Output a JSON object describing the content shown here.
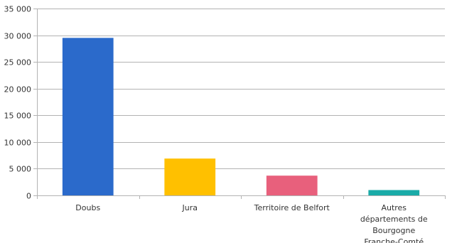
{
  "chart_data": {
    "type": "bar",
    "title": "",
    "xlabel": "",
    "ylabel": "",
    "categories": [
      [
        "Doubs"
      ],
      [
        "Jura"
      ],
      [
        "Territoire de Belfort"
      ],
      [
        "Autres",
        "départements de",
        "Bourgogne",
        "Franche-Comté"
      ]
    ],
    "values": [
      29500,
      6900,
      3700,
      1000
    ],
    "colors": [
      "#2b6acb",
      "#ffc000",
      "#e8607c",
      "#1aaba8"
    ],
    "ylim": [
      0,
      35000
    ],
    "yticks": [
      0,
      5000,
      10000,
      15000,
      20000,
      25000,
      30000,
      35000
    ],
    "ytick_labels": [
      "0",
      "5 000",
      "10 000",
      "15 000",
      "20 000",
      "25 000",
      "30 000",
      "35 000"
    ],
    "grid": true,
    "legend": "none",
    "grid_color": "#b3b3b3",
    "axis_color": "#b3b3b3"
  }
}
